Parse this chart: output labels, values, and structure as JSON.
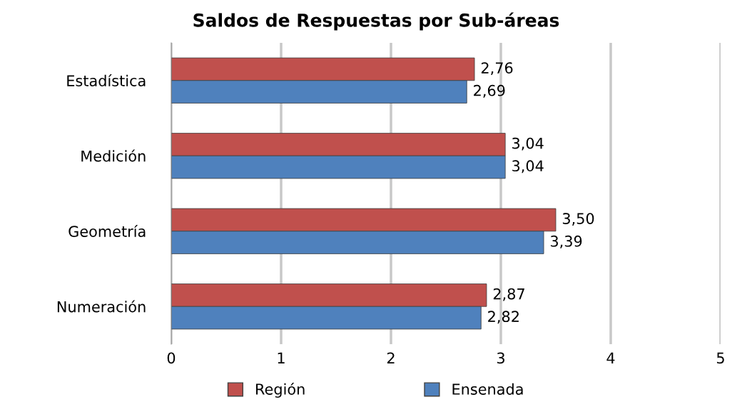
{
  "chart_data": {
    "type": "bar",
    "title": "Saldos de Respuestas por Sub-áreas",
    "orientation": "horizontal",
    "categories": [
      "Estadística",
      "Medición",
      "Geometría",
      "Numeración"
    ],
    "series": [
      {
        "name": "Región",
        "color": "#c0504d",
        "values": [
          2.76,
          3.04,
          3.5,
          2.87
        ],
        "value_labels": [
          "2,76",
          "3,04",
          "3,50",
          "2,87"
        ]
      },
      {
        "name": "Ensenada",
        "color": "#4f81bd",
        "values": [
          2.69,
          3.04,
          3.39,
          2.82
        ],
        "value_labels": [
          "2,69",
          "3,04",
          "3,39",
          "2,82"
        ]
      }
    ],
    "xlim": [
      0,
      5
    ],
    "xticks": [
      0,
      1,
      2,
      3,
      4,
      5
    ],
    "grid": "x",
    "legend": "bottom"
  }
}
